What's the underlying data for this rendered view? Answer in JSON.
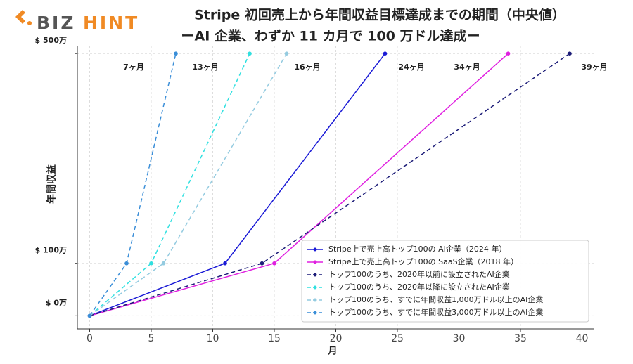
{
  "logo": {
    "left": "BIZ",
    "right": "HINT"
  },
  "chart_data": {
    "type": "line",
    "title": "Stripe 初回売上から年間収益目標達成までの期間（中央値）",
    "subtitle": "ーAI 企業、わずか 11 カ月で 100 万ドル達成ー",
    "x_label": "月",
    "y_label": "年間収益",
    "annotations": [
      "7ヶ月",
      "13ヶ月",
      "16ヶ月",
      "24ヶ月",
      "34ヶ月",
      "39ヶ月"
    ],
    "xlim": [
      -1,
      41
    ],
    "xticks": [
      0,
      5,
      10,
      15,
      20,
      25,
      30,
      35,
      40
    ],
    "ylim": [
      -25,
      515
    ],
    "yticks": [
      {
        "value": 0,
        "label": "$ 0万"
      },
      {
        "value": 100,
        "label": "$ 100万"
      },
      {
        "value": 500,
        "label": "$ 500万"
      }
    ],
    "grid": true,
    "legend": "lower right",
    "series": [
      {
        "name": "Stripe上で売上高トップ100の AI企業（2024 年）",
        "color": "#1a1ad6",
        "dashed": false,
        "x": [
          0,
          11,
          24
        ],
        "values": [
          0,
          100,
          500
        ]
      },
      {
        "name": "Stripe上で売上高トップ100の SaaS企業（2018 年）",
        "color": "#e020e0",
        "dashed": false,
        "x": [
          0,
          15,
          34
        ],
        "values": [
          0,
          100,
          500
        ]
      },
      {
        "name": "トップ100のうち、2020年以前に設立されたAI企業",
        "color": "#1c1c78",
        "dashed": true,
        "x": [
          0,
          14,
          39
        ],
        "values": [
          0,
          100,
          500
        ]
      },
      {
        "name": "トップ100のうち、2020年以降に設立されたAI企業",
        "color": "#30e0e0",
        "dashed": true,
        "x": [
          0,
          5,
          13
        ],
        "values": [
          0,
          100,
          500
        ]
      },
      {
        "name": "トップ100のうち、すでに年間収益1,000万ドル以上のAI企業",
        "color": "#94cbe0",
        "dashed": true,
        "x": [
          0,
          6,
          16
        ],
        "values": [
          0,
          100,
          500
        ]
      },
      {
        "name": "トップ100のうち、すでに年間収益3,000万ドル以上のAI企業",
        "color": "#3a8ed8",
        "dashed": true,
        "x": [
          0,
          3,
          7
        ],
        "values": [
          0,
          100,
          500
        ]
      }
    ]
  }
}
